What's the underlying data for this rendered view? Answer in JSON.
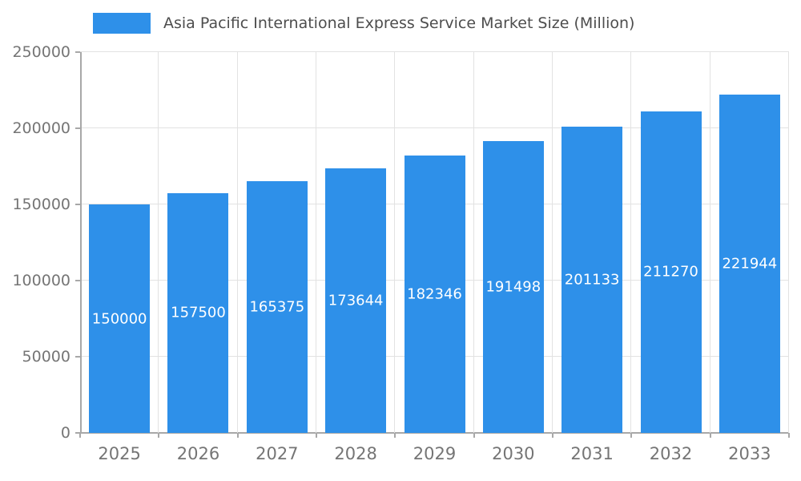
{
  "chart_data": {
    "type": "bar",
    "title": "Asia Pacific International Express Service Market Size (Million)",
    "categories": [
      "2025",
      "2026",
      "2027",
      "2028",
      "2029",
      "2030",
      "2031",
      "2032",
      "2033"
    ],
    "values": [
      150000,
      157500,
      165375,
      173644,
      182346,
      191498,
      201133,
      211270,
      221944
    ],
    "value_labels": [
      "150000",
      "157500",
      "165375",
      "173644",
      "182346",
      "191498",
      "201133",
      "211270",
      "221944"
    ],
    "xlabel": "",
    "ylabel": "",
    "ylim": [
      0,
      250000
    ],
    "yticks": [
      0,
      50000,
      100000,
      150000,
      200000,
      250000
    ],
    "ytick_labels": [
      "0",
      "50000",
      "100000",
      "150000",
      "200000",
      "250000"
    ],
    "grid": "on",
    "legend_position": "top-left",
    "bar_color": "#2e90e9",
    "label_color": "#ffffff",
    "axis_text_color": "#757575"
  }
}
